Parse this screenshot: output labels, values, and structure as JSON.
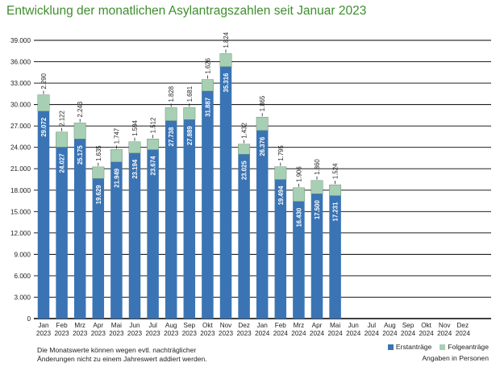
{
  "title": "Entwicklung der monatlichen Asylantragszahlen seit Januar 2023",
  "footnote_line1": "Die Monatswerte können wegen evtl. nachträglicher",
  "footnote_line2": "Änderungen nicht zu einem Jahreswert addiert werden.",
  "unit_note": "Angaben in Personen",
  "colors": {
    "erst": "#3a74b4",
    "folge": "#a7cfb3",
    "grid": "#000000",
    "title": "#3e8e2e"
  },
  "chart_data": {
    "type": "bar",
    "stacked": true,
    "ylim": [
      0,
      39000
    ],
    "yticks": [
      "0",
      "3.000",
      "6.000",
      "9.000",
      "12.000",
      "15.000",
      "18.000",
      "21.000",
      "24.000",
      "27.000",
      "30.000",
      "33.000",
      "36.000",
      "39.000"
    ],
    "legend_position": "bottom-right",
    "grid": true,
    "categories": [
      {
        "month": "Jan",
        "year": "2023"
      },
      {
        "month": "Feb",
        "year": "2023"
      },
      {
        "month": "Mrz",
        "year": "2023"
      },
      {
        "month": "Apr",
        "year": "2023"
      },
      {
        "month": "Mai",
        "year": "2023"
      },
      {
        "month": "Jun",
        "year": "2023"
      },
      {
        "month": "Jul",
        "year": "2023"
      },
      {
        "month": "Aug",
        "year": "2023"
      },
      {
        "month": "Sep",
        "year": "2023"
      },
      {
        "month": "Okt",
        "year": "2023"
      },
      {
        "month": "Nov",
        "year": "2023"
      },
      {
        "month": "Dez",
        "year": "2023"
      },
      {
        "month": "Jan",
        "year": "2024"
      },
      {
        "month": "Feb",
        "year": "2024"
      },
      {
        "month": "Mrz",
        "year": "2024"
      },
      {
        "month": "Apr",
        "year": "2024"
      },
      {
        "month": "Mai",
        "year": "2024"
      },
      {
        "month": "Jun",
        "year": "2024"
      },
      {
        "month": "Jul",
        "year": "2024"
      },
      {
        "month": "Aug",
        "year": "2024"
      },
      {
        "month": "Sep",
        "year": "2024"
      },
      {
        "month": "Okt",
        "year": "2024"
      },
      {
        "month": "Nov",
        "year": "2024"
      },
      {
        "month": "Dez",
        "year": "2024"
      }
    ],
    "series": [
      {
        "name": "Erstanträge",
        "values": [
          29072,
          24027,
          25175,
          19629,
          21949,
          23194,
          23674,
          27738,
          27889,
          31887,
          35316,
          23025,
          26376,
          19494,
          16430,
          17500,
          17231,
          null,
          null,
          null,
          null,
          null,
          null,
          null
        ],
        "labels": [
          "29.072",
          "24.027",
          "25.175",
          "19.629",
          "21.949",
          "23.194",
          "23.674",
          "27.738",
          "27.889",
          "31.887",
          "35.316",
          "23.025",
          "26.376",
          "19.494",
          "16.430",
          "17.500",
          "17.231",
          "",
          "",
          "",
          "",
          "",
          "",
          ""
        ]
      },
      {
        "name": "Folgeanträge",
        "values": [
          2290,
          2122,
          2243,
          1635,
          1747,
          1594,
          1512,
          1828,
          1681,
          1626,
          1824,
          1432,
          1865,
          1795,
          1906,
          1860,
          1524,
          null,
          null,
          null,
          null,
          null,
          null,
          null
        ],
        "labels": [
          "2.290",
          "2.122",
          "2.243",
          "1.635",
          "1.747",
          "1.594",
          "1.512",
          "1.828",
          "1.681",
          "1.626",
          "1.824",
          "1.432",
          "1.865",
          "1.795",
          "1.906",
          "1.860",
          "1.524",
          "",
          "",
          "",
          "",
          "",
          "",
          ""
        ]
      }
    ]
  }
}
